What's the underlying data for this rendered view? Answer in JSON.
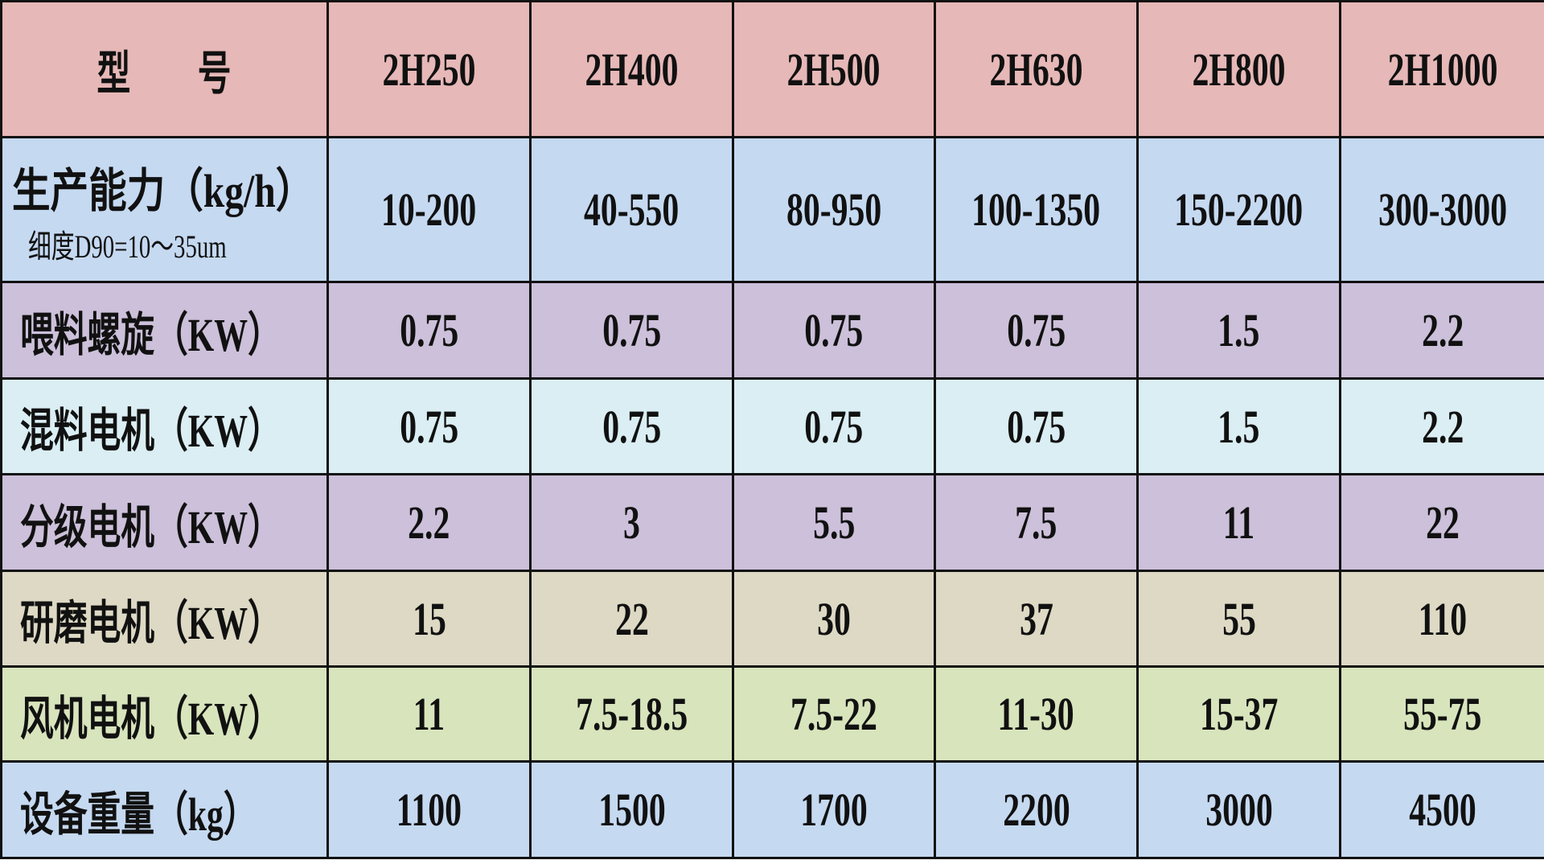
{
  "colors": [
    "#e6b8b7",
    "#c5d9f1",
    "#ccc0da",
    "#daeef3",
    "#ccc0da",
    "#ddd9c4",
    "#d8e4bc",
    "#c5d9f1"
  ],
  "header": {
    "label": "型　　号",
    "models": [
      "2H250",
      "2H400",
      "2H500",
      "2H630",
      "2H800",
      "2H1000"
    ]
  },
  "rows": [
    {
      "label": "生产能力（kg/h）",
      "sublabel": "细度D90=10～35um",
      "values": [
        "10-200",
        "40-550",
        "80-950",
        "100-1350",
        "150-2200",
        "300-3000"
      ]
    },
    {
      "label": "喂料螺旋（KW）",
      "values": [
        "0.75",
        "0.75",
        "0.75",
        "0.75",
        "1.5",
        "2.2"
      ]
    },
    {
      "label": "混料电机（KW）",
      "values": [
        "0.75",
        "0.75",
        "0.75",
        "0.75",
        "1.5",
        "2.2"
      ]
    },
    {
      "label": "分级电机（KW）",
      "values": [
        "2.2",
        "3",
        "5.5",
        "7.5",
        "11",
        "22"
      ]
    },
    {
      "label": "研磨电机（KW）",
      "values": [
        "15",
        "22",
        "30",
        "37",
        "55",
        "110"
      ]
    },
    {
      "label": "风机电机（KW）",
      "values": [
        "11",
        "7.5-18.5",
        "7.5-22",
        "11-30",
        "15-37",
        "55-75"
      ]
    },
    {
      "label": "设备重量（kg）",
      "values": [
        "1100",
        "1500",
        "1700",
        "2200",
        "3000",
        "4500"
      ]
    }
  ]
}
